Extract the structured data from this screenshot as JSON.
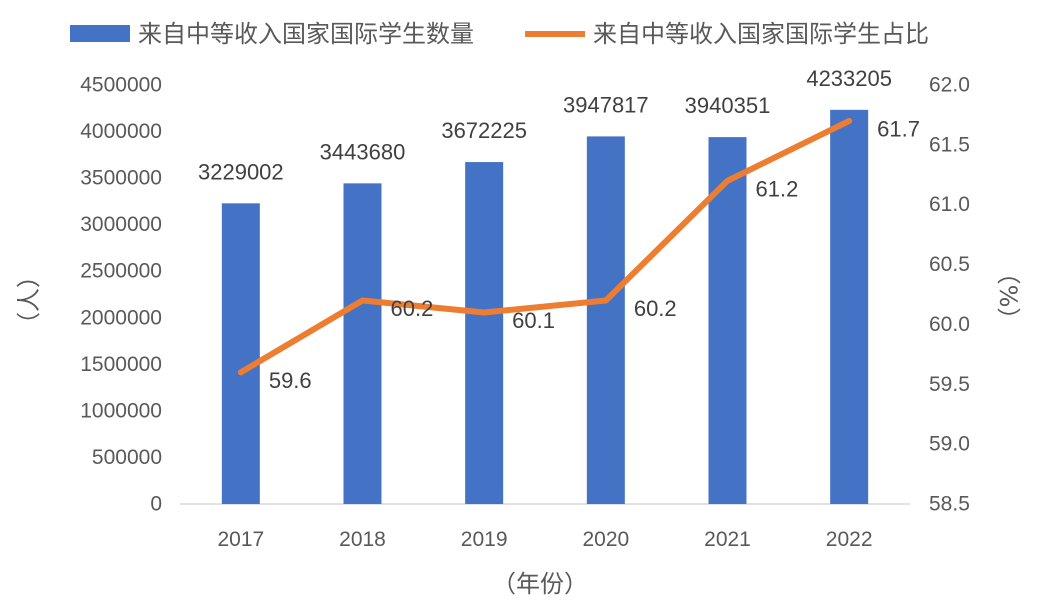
{
  "chart_data": {
    "type": "bar",
    "categories": [
      "2017",
      "2018",
      "2019",
      "2020",
      "2021",
      "2022"
    ],
    "series": [
      {
        "name": "来自中等收入国家国际学生数量",
        "type": "bar",
        "axis": "left",
        "color": "#4472c4",
        "values": [
          3229002,
          3443680,
          3672225,
          3947817,
          3940351,
          4233205
        ]
      },
      {
        "name": "来自中等收入国家国际学生占比",
        "type": "line",
        "axis": "right",
        "color": "#ed7d31",
        "values": [
          59.6,
          60.2,
          60.1,
          60.2,
          61.2,
          61.7
        ]
      }
    ],
    "xlabel": "（年份）",
    "ylabel": "（人）",
    "y2label": "（%）",
    "ylim": [
      0,
      4500000
    ],
    "y2lim": [
      58.5,
      62.0
    ],
    "yticks": [
      "0",
      "500000",
      "1000000",
      "1500000",
      "2000000",
      "2500000",
      "3000000",
      "3500000",
      "4000000",
      "4500000"
    ],
    "y2ticks": [
      "58.5",
      "59.0",
      "59.5",
      "60.0",
      "60.5",
      "61.0",
      "61.5",
      "62.0"
    ],
    "bar_labels": [
      "3229002",
      "3443680",
      "3672225",
      "3947817",
      "3940351",
      "4233205"
    ],
    "line_labels": [
      "59.6",
      "60.2",
      "60.1",
      "60.2",
      "61.2",
      "61.7"
    ],
    "legend": "top",
    "grid": false
  }
}
